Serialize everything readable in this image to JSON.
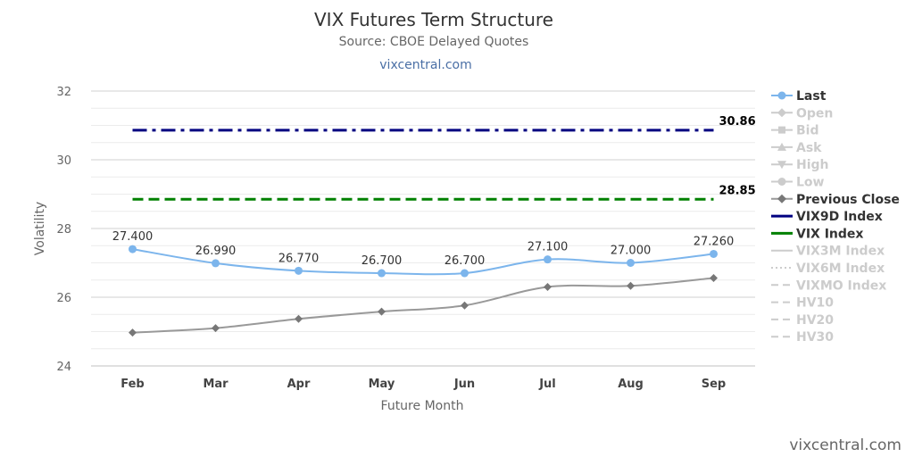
{
  "header": {
    "title": "VIX Futures Term Structure",
    "subtitle": "Source: CBOE Delayed Quotes",
    "link": "vixcentral.com"
  },
  "credits": "vixcentral.com",
  "chart_data": {
    "type": "line",
    "title": "VIX Futures Term Structure",
    "subtitle": "Source: CBOE Delayed Quotes",
    "xlabel": "Future Month",
    "ylabel": "Volatility",
    "categories": [
      "Feb",
      "Mar",
      "Apr",
      "May",
      "Jun",
      "Jul",
      "Aug",
      "Sep"
    ],
    "ylim": [
      24,
      32
    ],
    "yticks": [
      24,
      26,
      28,
      30,
      32
    ],
    "grid": true,
    "legend_position": "right",
    "series": [
      {
        "name": "Last",
        "values": [
          27.4,
          26.99,
          26.77,
          26.7,
          26.7,
          27.1,
          27.0,
          27.26
        ],
        "labels": [
          "27.400",
          "26.990",
          "26.770",
          "26.700",
          "26.700",
          "27.100",
          "27.000",
          "27.260"
        ],
        "color": "#7cb5ec"
      },
      {
        "name": "Previous Close",
        "values": [
          24.97,
          25.1,
          25.37,
          25.58,
          25.76,
          26.3,
          26.33,
          26.56
        ],
        "color": "#999999"
      }
    ],
    "reference_lines": [
      {
        "name": "VIX9D Index",
        "value": 30.86,
        "label": "30.86",
        "color": "#000080",
        "style": "dashdot"
      },
      {
        "name": "VIX Index",
        "value": 28.85,
        "label": "28.85",
        "color": "#008000",
        "style": "dash"
      }
    ],
    "legend": [
      {
        "name": "Last",
        "symbol": "circle",
        "color": "#7cb5ec",
        "active": true
      },
      {
        "name": "Open",
        "symbol": "diamond",
        "color": "#cccccc",
        "active": false
      },
      {
        "name": "Bid",
        "symbol": "square",
        "color": "#cccccc",
        "active": false
      },
      {
        "name": "Ask",
        "symbol": "triangle",
        "color": "#cccccc",
        "active": false
      },
      {
        "name": "High",
        "symbol": "triangle-down",
        "color": "#cccccc",
        "active": false
      },
      {
        "name": "Low",
        "symbol": "circle",
        "color": "#cccccc",
        "active": false
      },
      {
        "name": "Previous Close",
        "symbol": "diamond",
        "color": "#999999",
        "active": true
      },
      {
        "name": "VIX9D Index",
        "symbol": "line",
        "color": "#000080",
        "active": true
      },
      {
        "name": "VIX Index",
        "symbol": "line",
        "color": "#008000",
        "active": true
      },
      {
        "name": "VIX3M Index",
        "symbol": "line",
        "color": "#cccccc",
        "active": false
      },
      {
        "name": "VIX6M Index",
        "symbol": "dotted",
        "color": "#cccccc",
        "active": false
      },
      {
        "name": "VIXMO Index",
        "symbol": "dashed",
        "color": "#cccccc",
        "active": false
      },
      {
        "name": "HV10",
        "symbol": "dashed",
        "color": "#cccccc",
        "active": false
      },
      {
        "name": "HV20",
        "symbol": "dashed",
        "color": "#cccccc",
        "active": false
      },
      {
        "name": "HV30",
        "symbol": "dashed",
        "color": "#cccccc",
        "active": false
      }
    ]
  }
}
